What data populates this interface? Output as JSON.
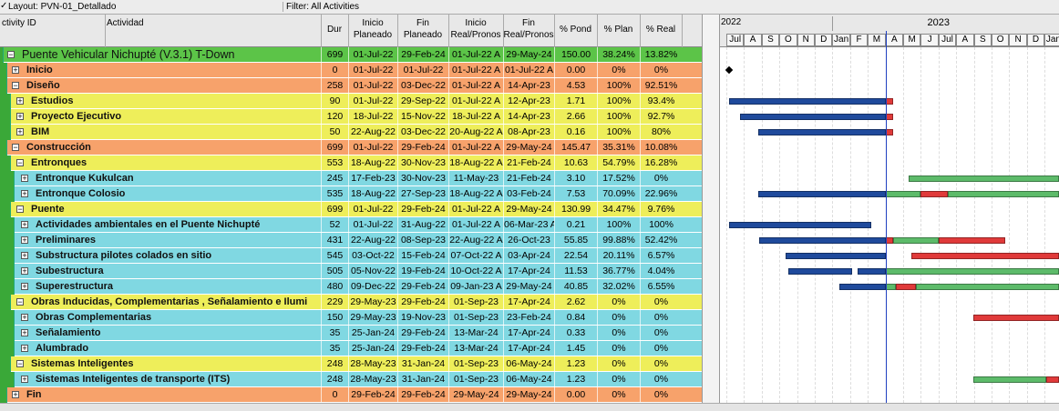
{
  "toolbar": {
    "layout": "Layout: PVN-01_Detallado",
    "filter": "Filter: All Activities"
  },
  "columns": [
    [
      "ctivity ID"
    ],
    [
      "Actividad"
    ],
    [
      "Dur"
    ],
    [
      "Inicio",
      "Planeado"
    ],
    [
      "Fin",
      "Planeado"
    ],
    [
      "Inicio",
      "Real/Pronos"
    ],
    [
      "Fin",
      "Real/Pronos"
    ],
    [
      "% Pond"
    ],
    [
      "% Plan"
    ],
    [
      "% Real"
    ]
  ],
  "gantt": {
    "years": [
      "2022",
      "2023"
    ],
    "months": [
      "Jul",
      "A",
      "S",
      "O",
      "N",
      "D",
      "Jan",
      "F",
      "M",
      "A",
      "M",
      "J",
      "Jul",
      "A",
      "S",
      "O",
      "N",
      "D",
      "Jan"
    ]
  },
  "rows": [
    [
      "Puente Vehicular Nichupté (V.3.1) T-Down",
      "699",
      "01-Jul-22",
      "29-Feb-24",
      "01-Jul-22 A",
      "29-May-24",
      "150.00",
      "38.24%",
      "13.82%"
    ],
    [
      "Inicio",
      "0",
      "01-Jul-22",
      "01-Jul-22",
      "01-Jul-22 A",
      "01-Jul-22 A",
      "0.00",
      "0%",
      "0%"
    ],
    [
      "Diseño",
      "258",
      "01-Jul-22",
      "03-Dec-22",
      "01-Jul-22 A",
      "14-Apr-23",
      "4.53",
      "100%",
      "92.51%"
    ],
    [
      "Estudios",
      "90",
      "01-Jul-22",
      "29-Sep-22",
      "01-Jul-22 A",
      "12-Apr-23",
      "1.71",
      "100%",
      "93.4%"
    ],
    [
      "Proyecto Ejecutivo",
      "120",
      "18-Jul-22",
      "15-Nov-22",
      "18-Jul-22 A",
      "14-Apr-23",
      "2.66",
      "100%",
      "92.7%"
    ],
    [
      "BIM",
      "50",
      "22-Aug-22",
      "03-Dec-22",
      "20-Aug-22 A",
      "08-Apr-23",
      "0.16",
      "100%",
      "80%"
    ],
    [
      "Construcción",
      "699",
      "01-Jul-22",
      "29-Feb-24",
      "01-Jul-22 A",
      "29-May-24",
      "145.47",
      "35.31%",
      "10.08%"
    ],
    [
      "Entronques",
      "553",
      "18-Aug-22",
      "30-Nov-23",
      "18-Aug-22 A",
      "21-Feb-24",
      "10.63",
      "54.79%",
      "16.28%"
    ],
    [
      "Entronque Kukulcan",
      "245",
      "17-Feb-23",
      "30-Nov-23",
      "11-May-23",
      "21-Feb-24",
      "3.10",
      "17.52%",
      "0%"
    ],
    [
      "Entronque Colosio",
      "535",
      "18-Aug-22",
      "27-Sep-23",
      "18-Aug-22 A",
      "03-Feb-24",
      "7.53",
      "70.09%",
      "22.96%"
    ],
    [
      "Puente",
      "699",
      "01-Jul-22",
      "29-Feb-24",
      "01-Jul-22 A",
      "29-May-24",
      "130.99",
      "34.47%",
      "9.76%"
    ],
    [
      "Actividades ambientales en el Puente Nichupté",
      "52",
      "01-Jul-22",
      "31-Aug-22",
      "01-Jul-22 A",
      "06-Mar-23 A",
      "0.21",
      "100%",
      "100%"
    ],
    [
      "Preliminares",
      "431",
      "22-Aug-22",
      "08-Sep-23",
      "22-Aug-22 A",
      "26-Oct-23",
      "55.85",
      "99.88%",
      "52.42%"
    ],
    [
      "Substructura pilotes colados en sitio",
      "545",
      "03-Oct-22",
      "15-Feb-24",
      "07-Oct-22 A",
      "03-Apr-24",
      "22.54",
      "20.11%",
      "6.57%"
    ],
    [
      "Subestructura",
      "505",
      "05-Nov-22",
      "19-Feb-24",
      "10-Oct-22 A",
      "17-Apr-24",
      "11.53",
      "36.77%",
      "4.04%"
    ],
    [
      "Superestructura",
      "480",
      "09-Dec-22",
      "29-Feb-24",
      "09-Jan-23 A",
      "29-May-24",
      "40.85",
      "32.02%",
      "6.55%"
    ],
    [
      "Obras Inducidas, Complementarias , Señalamiento e Ilumi",
      "229",
      "29-May-23",
      "29-Feb-24",
      "01-Sep-23",
      "17-Apr-24",
      "2.62",
      "0%",
      "0%"
    ],
    [
      "Obras Complementarias",
      "150",
      "29-May-23",
      "19-Nov-23",
      "01-Sep-23",
      "23-Feb-24",
      "0.84",
      "0%",
      "0%"
    ],
    [
      "Señalamiento",
      "35",
      "25-Jan-24",
      "29-Feb-24",
      "13-Mar-24",
      "17-Apr-24",
      "0.33",
      "0%",
      "0%"
    ],
    [
      "Alumbrado",
      "35",
      "25-Jan-24",
      "29-Feb-24",
      "13-Mar-24",
      "17-Apr-24",
      "1.45",
      "0%",
      "0%"
    ],
    [
      "Sistemas Inteligentes",
      "248",
      "28-May-23",
      "31-Jan-24",
      "01-Sep-23",
      "06-May-24",
      "1.23",
      "0%",
      "0%"
    ],
    [
      "Sistemas Inteligentes de transporte (ITS)",
      "248",
      "28-May-23",
      "31-Jan-24",
      "01-Sep-23",
      "06-May-24",
      "1.23",
      "0%",
      "0%"
    ],
    [
      "Fin",
      "0",
      "29-Feb-24",
      "29-Feb-24",
      "29-May-24",
      "29-May-24",
      "0.00",
      "0%",
      "0%"
    ]
  ]
}
